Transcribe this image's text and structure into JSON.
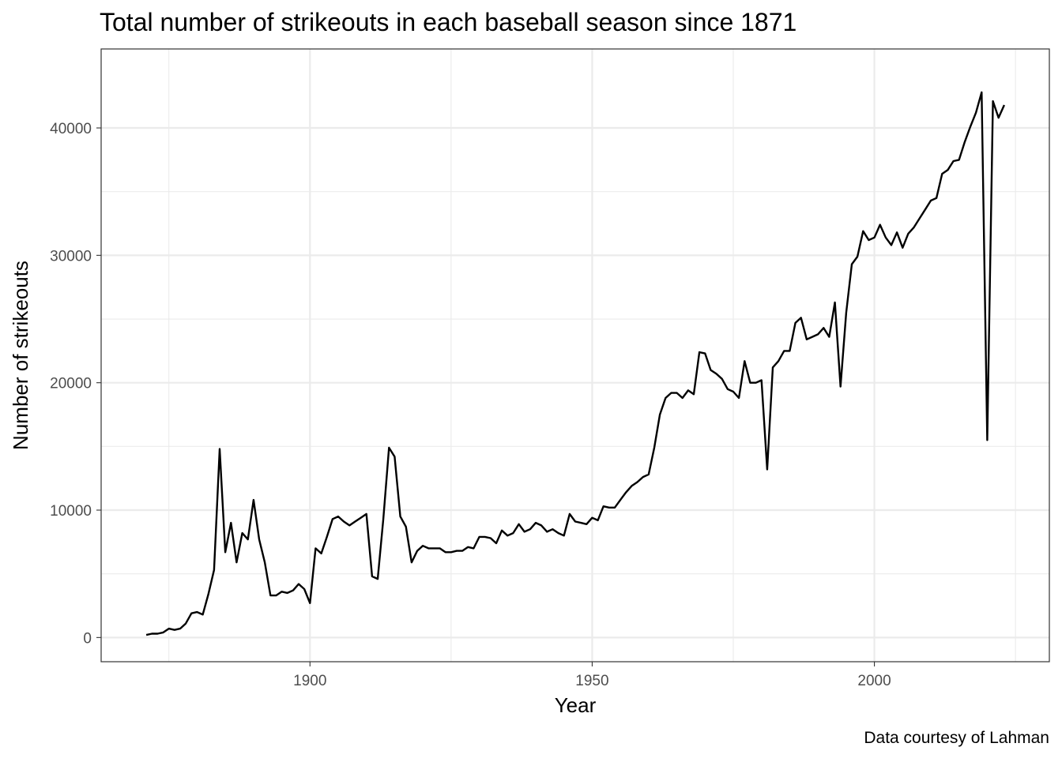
{
  "chart_data": {
    "type": "line",
    "title": "Total number of strikeouts in each baseball season since 1871",
    "xlabel": "Year",
    "ylabel": "Number of strikeouts",
    "caption": "Data courtesy of Lahman",
    "xlim": [
      1863,
      2031
    ],
    "ylim": [
      -1900,
      46200
    ],
    "x_major_ticks": [
      1900,
      1950,
      2000
    ],
    "x_minor_ticks": [
      1875,
      1925,
      1975,
      2025
    ],
    "y_major_ticks": [
      0,
      10000,
      20000,
      30000,
      40000
    ],
    "y_minor_ticks": [
      5000,
      15000,
      25000,
      35000
    ],
    "x_tick_labels": [
      "1900",
      "1950",
      "2000"
    ],
    "y_tick_labels": [
      "0",
      "10000",
      "20000",
      "30000",
      "40000"
    ],
    "grid": true,
    "series": [
      {
        "color": "#000000",
        "x": [
          1871,
          1872,
          1873,
          1874,
          1875,
          1876,
          1877,
          1878,
          1879,
          1880,
          1881,
          1882,
          1883,
          1884,
          1885,
          1886,
          1887,
          1888,
          1889,
          1890,
          1891,
          1892,
          1893,
          1894,
          1895,
          1896,
          1897,
          1898,
          1899,
          1900,
          1901,
          1902,
          1903,
          1904,
          1905,
          1906,
          1907,
          1908,
          1909,
          1910,
          1911,
          1912,
          1913,
          1914,
          1915,
          1916,
          1917,
          1918,
          1919,
          1920,
          1921,
          1922,
          1923,
          1924,
          1925,
          1926,
          1927,
          1928,
          1929,
          1930,
          1931,
          1932,
          1933,
          1934,
          1935,
          1936,
          1937,
          1938,
          1939,
          1940,
          1941,
          1942,
          1943,
          1944,
          1945,
          1946,
          1947,
          1948,
          1949,
          1950,
          1951,
          1952,
          1953,
          1954,
          1955,
          1956,
          1957,
          1958,
          1959,
          1960,
          1961,
          1962,
          1963,
          1964,
          1965,
          1966,
          1967,
          1968,
          1969,
          1970,
          1971,
          1972,
          1973,
          1974,
          1975,
          1976,
          1977,
          1978,
          1979,
          1980,
          1981,
          1982,
          1983,
          1984,
          1985,
          1986,
          1987,
          1988,
          1989,
          1990,
          1991,
          1992,
          1993,
          1994,
          1995,
          1996,
          1997,
          1998,
          1999,
          2000,
          2001,
          2002,
          2003,
          2004,
          2005,
          2006,
          2007,
          2008,
          2009,
          2010,
          2011,
          2012,
          2013,
          2014,
          2015,
          2016,
          2017,
          2018,
          2019,
          2020,
          2021,
          2022,
          2023
        ],
        "y": [
          200,
          300,
          300,
          400,
          700,
          600,
          700,
          1100,
          1900,
          2000,
          1800,
          3400,
          5300,
          14800,
          6700,
          9000,
          5900,
          8200,
          7700,
          10800,
          7700,
          5900,
          3300,
          3300,
          3600,
          3500,
          3700,
          4200,
          3800,
          2700,
          7000,
          6600,
          7900,
          9300,
          9500,
          9100,
          8800,
          9100,
          9400,
          9700,
          4800,
          4600,
          9300,
          14900,
          14200,
          9500,
          8700,
          5900,
          6800,
          7200,
          7000,
          7000,
          7000,
          6700,
          6700,
          6800,
          6800,
          7100,
          7000,
          7900,
          7900,
          7800,
          7400,
          8400,
          8000,
          8200,
          8900,
          8300,
          8500,
          9000,
          8800,
          8300,
          8500,
          8200,
          8000,
          9700,
          9100,
          9000,
          8900,
          9400,
          9200,
          10300,
          10200,
          10200,
          10800,
          11400,
          11900,
          12200,
          12600,
          12800,
          14900,
          17500,
          18800,
          19200,
          19200,
          18800,
          19400,
          19100,
          22400,
          22300,
          21000,
          20700,
          20300,
          19500,
          19300,
          18800,
          21700,
          20000,
          20000,
          20200,
          13200,
          21200,
          21700,
          22500,
          22500,
          24700,
          25100,
          23400,
          23600,
          23800,
          24300,
          23600,
          26300,
          19700,
          25500,
          29300,
          29900,
          31900,
          31200,
          31400,
          32400,
          31400,
          30800,
          31800,
          30600,
          31700,
          32200,
          32900,
          33600,
          34300,
          34500,
          36400,
          36700,
          37400,
          37500,
          38900,
          40100,
          41200,
          42800,
          15500,
          42100,
          40800,
          41800
        ]
      }
    ]
  }
}
